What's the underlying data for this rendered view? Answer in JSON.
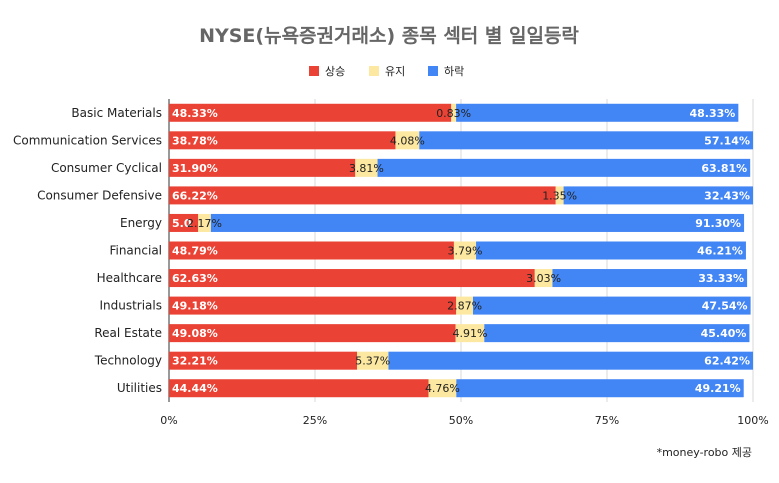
{
  "chart_data": {
    "type": "bar",
    "orientation": "horizontal",
    "stacked": "percent",
    "title": "NYSE(뉴욕증권거래소) 종목 섹터 별 일일등락",
    "categories": [
      "Basic Materials",
      "Communication Services",
      "Consumer Cyclical",
      "Consumer Defensive",
      "Energy",
      "Financial",
      "Healthcare",
      "Industrials",
      "Real Estate",
      "Technology",
      "Utilities"
    ],
    "series": [
      {
        "name": "상승",
        "color": "#ea4335",
        "values": [
          48.33,
          38.78,
          31.9,
          66.22,
          5.0,
          48.79,
          62.63,
          49.18,
          49.08,
          32.21,
          44.44
        ],
        "labels": [
          "48.33%",
          "38.78%",
          "31.90%",
          "66.22%",
          "5.0",
          "48.79%",
          "62.63%",
          "49.18%",
          "49.08%",
          "32.21%",
          "44.44%"
        ]
      },
      {
        "name": "유지",
        "color": "#fce8a0",
        "values": [
          0.83,
          4.08,
          3.81,
          1.35,
          2.17,
          3.79,
          3.03,
          2.87,
          4.91,
          5.37,
          4.76
        ],
        "labels": [
          "0.83%",
          "4.08%",
          "3.81%",
          "1.35%",
          "2.17%",
          "3.79%",
          "3.03%",
          "2.87%",
          "4.91%",
          "5.37%",
          "4.76%"
        ]
      },
      {
        "name": "하락",
        "color": "#4285f4",
        "values": [
          48.33,
          57.14,
          63.81,
          32.43,
          91.3,
          46.21,
          33.33,
          47.54,
          45.4,
          62.42,
          49.21
        ],
        "labels": [
          "48.33%",
          "57.14%",
          "63.81%",
          "32.43%",
          "91.30%",
          "46.21%",
          "33.33%",
          "47.54%",
          "45.40%",
          "62.42%",
          "49.21%"
        ]
      }
    ],
    "xticks": [
      "0%",
      "25%",
      "50%",
      "75%",
      "100%"
    ],
    "xlim": [
      0,
      100
    ],
    "grid": true,
    "legend_position": "top"
  },
  "footnote": "*money-robo 제공"
}
